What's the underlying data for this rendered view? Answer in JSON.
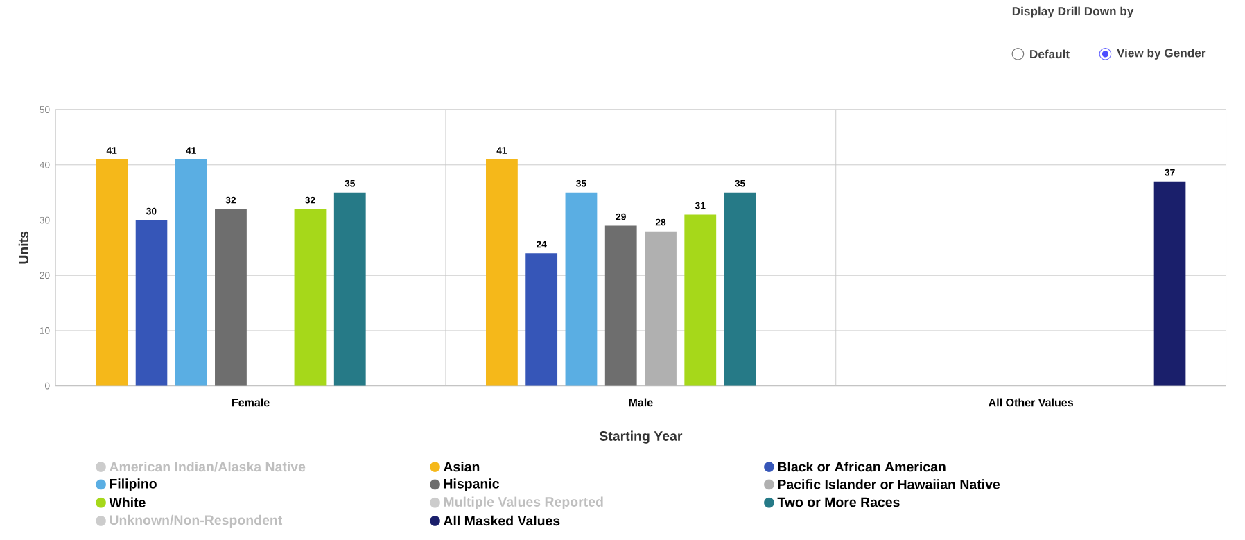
{
  "chart_data": {
    "type": "bar",
    "xlabel": "Starting Year",
    "ylabel": "Units",
    "categories": [
      "Female",
      "Male",
      "All Other Values"
    ],
    "series": [
      {
        "name": "American Indian/Alaska Native",
        "color": "#cccccc",
        "values": [
          null,
          null,
          null
        ]
      },
      {
        "name": "Asian",
        "color": "#f5b81a",
        "values": [
          41,
          41,
          null
        ]
      },
      {
        "name": "Black or African American",
        "color": "#3656b8",
        "values": [
          30,
          24,
          null
        ]
      },
      {
        "name": "Filipino",
        "color": "#5aaee3",
        "values": [
          41,
          35,
          null
        ]
      },
      {
        "name": "Hispanic",
        "color": "#6e6e6e",
        "values": [
          32,
          29,
          null
        ]
      },
      {
        "name": "Pacific Islander or Hawaiian Native",
        "color": "#b0b0b0",
        "values": [
          null,
          28,
          null
        ]
      },
      {
        "name": "White",
        "color": "#a6d81a",
        "values": [
          32,
          31,
          null
        ]
      },
      {
        "name": "Multiple Values Reported",
        "color": "#cccccc",
        "values": [
          null,
          null,
          null
        ]
      },
      {
        "name": "Two or More Races",
        "color": "#267a87",
        "values": [
          35,
          35,
          null
        ]
      },
      {
        "name": "Unknown/Non-Respondent",
        "color": "#cccccc",
        "values": [
          null,
          null,
          null
        ]
      },
      {
        "name": "All Masked Values",
        "color": "#1a1f6b",
        "values": [
          null,
          null,
          37
        ]
      }
    ],
    "ylim": [
      0,
      50
    ],
    "yticks": [
      0,
      10,
      20,
      30,
      40,
      50
    ],
    "grid": true,
    "legend": "bottom",
    "data_labels": true,
    "annotations": [
      "Display Drill Down by",
      "Default",
      "View by Gender"
    ]
  }
}
